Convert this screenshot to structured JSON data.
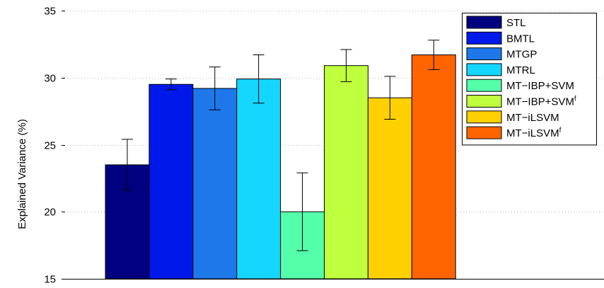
{
  "chart_data": {
    "type": "bar",
    "title": "",
    "xlabel": "",
    "ylabel": "Explained Variance (%)",
    "ylim": [
      15,
      35
    ],
    "yticks": [
      15,
      20,
      25,
      30,
      35
    ],
    "grid": "horizontal-dotted",
    "legend_position": "top-right",
    "series": [
      {
        "name": "STL",
        "value": 23.5,
        "error": [
          21.6,
          25.4
        ],
        "color": "#000080"
      },
      {
        "name": "BMTL",
        "value": 29.5,
        "error": [
          29.1,
          29.9
        ],
        "color": "#0019ea"
      },
      {
        "name": "MTGP",
        "value": 29.2,
        "error": [
          27.6,
          30.8
        ],
        "color": "#1e78ea"
      },
      {
        "name": "MTRL",
        "value": 29.9,
        "error": [
          28.1,
          31.7
        ],
        "color": "#14d6ff"
      },
      {
        "name": "MT−IBP+SVM",
        "value": 20.0,
        "error": [
          17.1,
          22.9
        ],
        "color": "#55ffaa"
      },
      {
        "name": "MT−IBP+SVM",
        "sup": "f",
        "value": 30.9,
        "error": [
          29.7,
          32.1
        ],
        "color": "#c0ff3e"
      },
      {
        "name": "MT−iLSVM",
        "value": 28.5,
        "error": [
          26.9,
          30.1
        ],
        "color": "#ffd000"
      },
      {
        "name": "MT−iLSVM",
        "sup": "f",
        "value": 31.7,
        "error": [
          30.6,
          32.8
        ],
        "color": "#ff6400"
      }
    ]
  }
}
